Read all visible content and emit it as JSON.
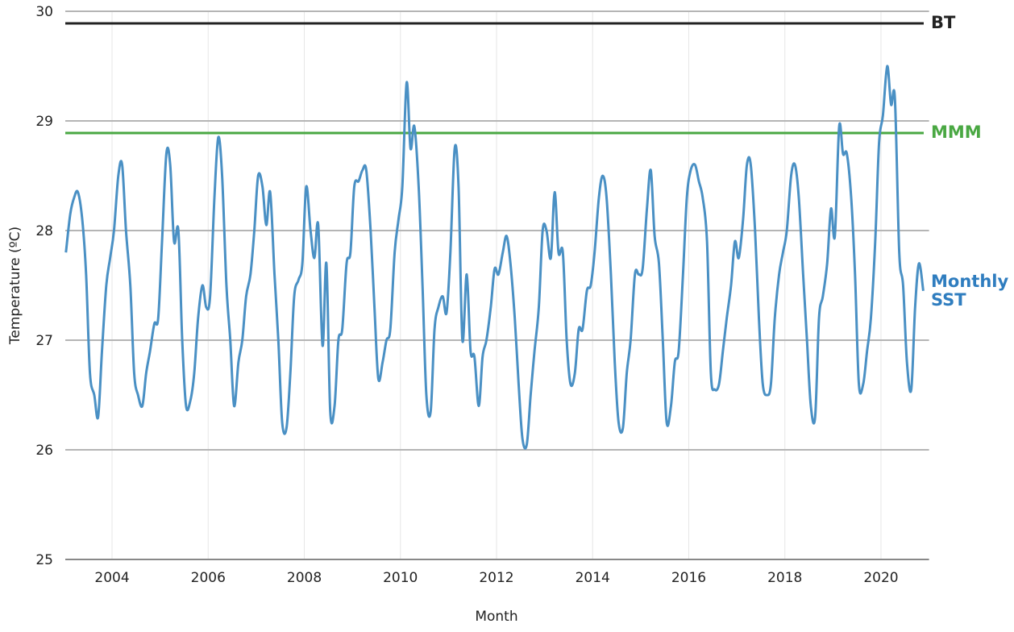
{
  "chart_data": {
    "type": "line",
    "xlabel": "Month",
    "ylabel": "Temperature (ºC)",
    "xlim": [
      2003,
      2021
    ],
    "xticks": [
      2004,
      2006,
      2008,
      2010,
      2012,
      2014,
      2016,
      2018,
      2020
    ],
    "ylim": [
      25,
      30
    ],
    "yticks": [
      25,
      26,
      27,
      28,
      29,
      30
    ],
    "grid": true,
    "hlines": [
      {
        "name": "BT",
        "value": 29.89,
        "color": "#222222"
      },
      {
        "name": "MMM",
        "value": 28.89,
        "color": "#4aa843"
      }
    ],
    "x": [
      2003.04,
      2003.13,
      2003.21,
      2003.29,
      2003.38,
      2003.46,
      2003.54,
      2003.63,
      2003.71,
      2003.79,
      2003.88,
      2003.96,
      2004.04,
      2004.13,
      2004.21,
      2004.29,
      2004.38,
      2004.46,
      2004.54,
      2004.63,
      2004.71,
      2004.79,
      2004.88,
      2004.96,
      2005.04,
      2005.13,
      2005.21,
      2005.29,
      2005.38,
      2005.46,
      2005.54,
      2005.63,
      2005.71,
      2005.79,
      2005.88,
      2005.96,
      2006.04,
      2006.13,
      2006.21,
      2006.29,
      2006.38,
      2006.46,
      2006.54,
      2006.63,
      2006.71,
      2006.79,
      2006.88,
      2006.96,
      2007.04,
      2007.13,
      2007.21,
      2007.29,
      2007.38,
      2007.46,
      2007.54,
      2007.63,
      2007.71,
      2007.79,
      2007.88,
      2007.96,
      2008.04,
      2008.13,
      2008.21,
      2008.29,
      2008.38,
      2008.46,
      2008.54,
      2008.63,
      2008.71,
      2008.79,
      2008.88,
      2008.96,
      2009.04,
      2009.13,
      2009.21,
      2009.29,
      2009.38,
      2009.46,
      2009.54,
      2009.63,
      2009.71,
      2009.79,
      2009.88,
      2009.96,
      2010.04,
      2010.13,
      2010.21,
      2010.29,
      2010.38,
      2010.46,
      2010.54,
      2010.63,
      2010.71,
      2010.79,
      2010.88,
      2010.96,
      2011.04,
      2011.13,
      2011.21,
      2011.29,
      2011.38,
      2011.46,
      2011.54,
      2011.63,
      2011.71,
      2011.79,
      2011.88,
      2011.96,
      2012.04,
      2012.13,
      2012.21,
      2012.29,
      2012.38,
      2012.46,
      2012.54,
      2012.63,
      2012.71,
      2012.79,
      2012.88,
      2012.96,
      2013.04,
      2013.13,
      2013.21,
      2013.29,
      2013.38,
      2013.46,
      2013.54,
      2013.63,
      2013.71,
      2013.79,
      2013.88,
      2013.96,
      2014.04,
      2014.13,
      2014.21,
      2014.29,
      2014.38,
      2014.46,
      2014.54,
      2014.63,
      2014.71,
      2014.79,
      2014.88,
      2014.96,
      2015.04,
      2015.13,
      2015.21,
      2015.29,
      2015.38,
      2015.46,
      2015.54,
      2015.63,
      2015.71,
      2015.79,
      2015.88,
      2015.96,
      2016.04,
      2016.13,
      2016.21,
      2016.29,
      2016.38,
      2016.46,
      2016.54,
      2016.63,
      2016.71,
      2016.79,
      2016.88,
      2016.96,
      2017.04,
      2017.13,
      2017.21,
      2017.29,
      2017.38,
      2017.46,
      2017.54,
      2017.63,
      2017.71,
      2017.79,
      2017.88,
      2017.96,
      2018.04,
      2018.13,
      2018.21,
      2018.29,
      2018.38,
      2018.46,
      2018.54,
      2018.63,
      2018.71,
      2018.79,
      2018.88,
      2018.96,
      2019.04,
      2019.13,
      2019.21,
      2019.29,
      2019.38,
      2019.46,
      2019.54,
      2019.63,
      2019.71,
      2019.79,
      2019.88,
      2019.96,
      2020.04,
      2020.13,
      2020.21,
      2020.29,
      2020.38,
      2020.46,
      2020.54,
      2020.63,
      2020.71,
      2020.79,
      2020.88
    ],
    "series": [
      {
        "name": "Monthly SST",
        "color": "#4a90c4",
        "label_color": "#2f7dbf",
        "values": [
          27.8,
          28.15,
          28.3,
          28.35,
          28.1,
          27.6,
          26.7,
          26.5,
          26.3,
          26.9,
          27.5,
          27.75,
          28.0,
          28.5,
          28.6,
          28.0,
          27.5,
          26.7,
          26.5,
          26.4,
          26.7,
          26.9,
          27.15,
          27.2,
          27.9,
          28.7,
          28.6,
          27.9,
          28.0,
          27.0,
          26.4,
          26.45,
          26.7,
          27.2,
          27.5,
          27.3,
          27.4,
          28.3,
          28.85,
          28.5,
          27.5,
          27.0,
          26.4,
          26.8,
          27.0,
          27.4,
          27.6,
          28.0,
          28.5,
          28.4,
          28.05,
          28.35,
          27.6,
          27.0,
          26.25,
          26.2,
          26.7,
          27.4,
          27.55,
          27.7,
          28.4,
          28.0,
          27.75,
          28.05,
          26.95,
          27.7,
          26.35,
          26.4,
          27.0,
          27.1,
          27.7,
          27.8,
          28.4,
          28.45,
          28.55,
          28.55,
          28.0,
          27.3,
          26.65,
          26.8,
          27.0,
          27.1,
          27.8,
          28.1,
          28.4,
          29.35,
          28.75,
          28.95,
          28.4,
          27.5,
          26.5,
          26.35,
          27.1,
          27.3,
          27.4,
          27.25,
          27.8,
          28.75,
          28.4,
          27.0,
          27.6,
          26.9,
          26.85,
          26.4,
          26.85,
          27.0,
          27.3,
          27.65,
          27.6,
          27.8,
          27.95,
          27.7,
          27.2,
          26.6,
          26.1,
          26.05,
          26.5,
          26.9,
          27.3,
          28.0,
          28.0,
          27.75,
          28.35,
          27.8,
          27.8,
          27.0,
          26.6,
          26.7,
          27.1,
          27.1,
          27.45,
          27.5,
          27.8,
          28.3,
          28.5,
          28.3,
          27.6,
          26.8,
          26.25,
          26.2,
          26.7,
          27.0,
          27.6,
          27.6,
          27.65,
          28.2,
          28.55,
          27.95,
          27.7,
          27.0,
          26.25,
          26.4,
          26.8,
          26.9,
          27.6,
          28.3,
          28.55,
          28.6,
          28.45,
          28.3,
          27.9,
          26.7,
          26.55,
          26.6,
          26.9,
          27.2,
          27.5,
          27.9,
          27.75,
          28.1,
          28.6,
          28.6,
          28.0,
          27.2,
          26.6,
          26.5,
          26.6,
          27.2,
          27.6,
          27.8,
          28.0,
          28.5,
          28.6,
          28.3,
          27.6,
          27.0,
          26.4,
          26.3,
          27.2,
          27.4,
          27.7,
          28.2,
          27.95,
          28.95,
          28.7,
          28.7,
          28.3,
          27.6,
          26.6,
          26.6,
          26.9,
          27.2,
          27.9,
          28.8,
          29.05,
          29.5,
          29.15,
          29.2,
          27.8,
          27.5,
          26.8,
          26.55,
          27.3,
          27.7,
          27.45
        ]
      }
    ]
  }
}
